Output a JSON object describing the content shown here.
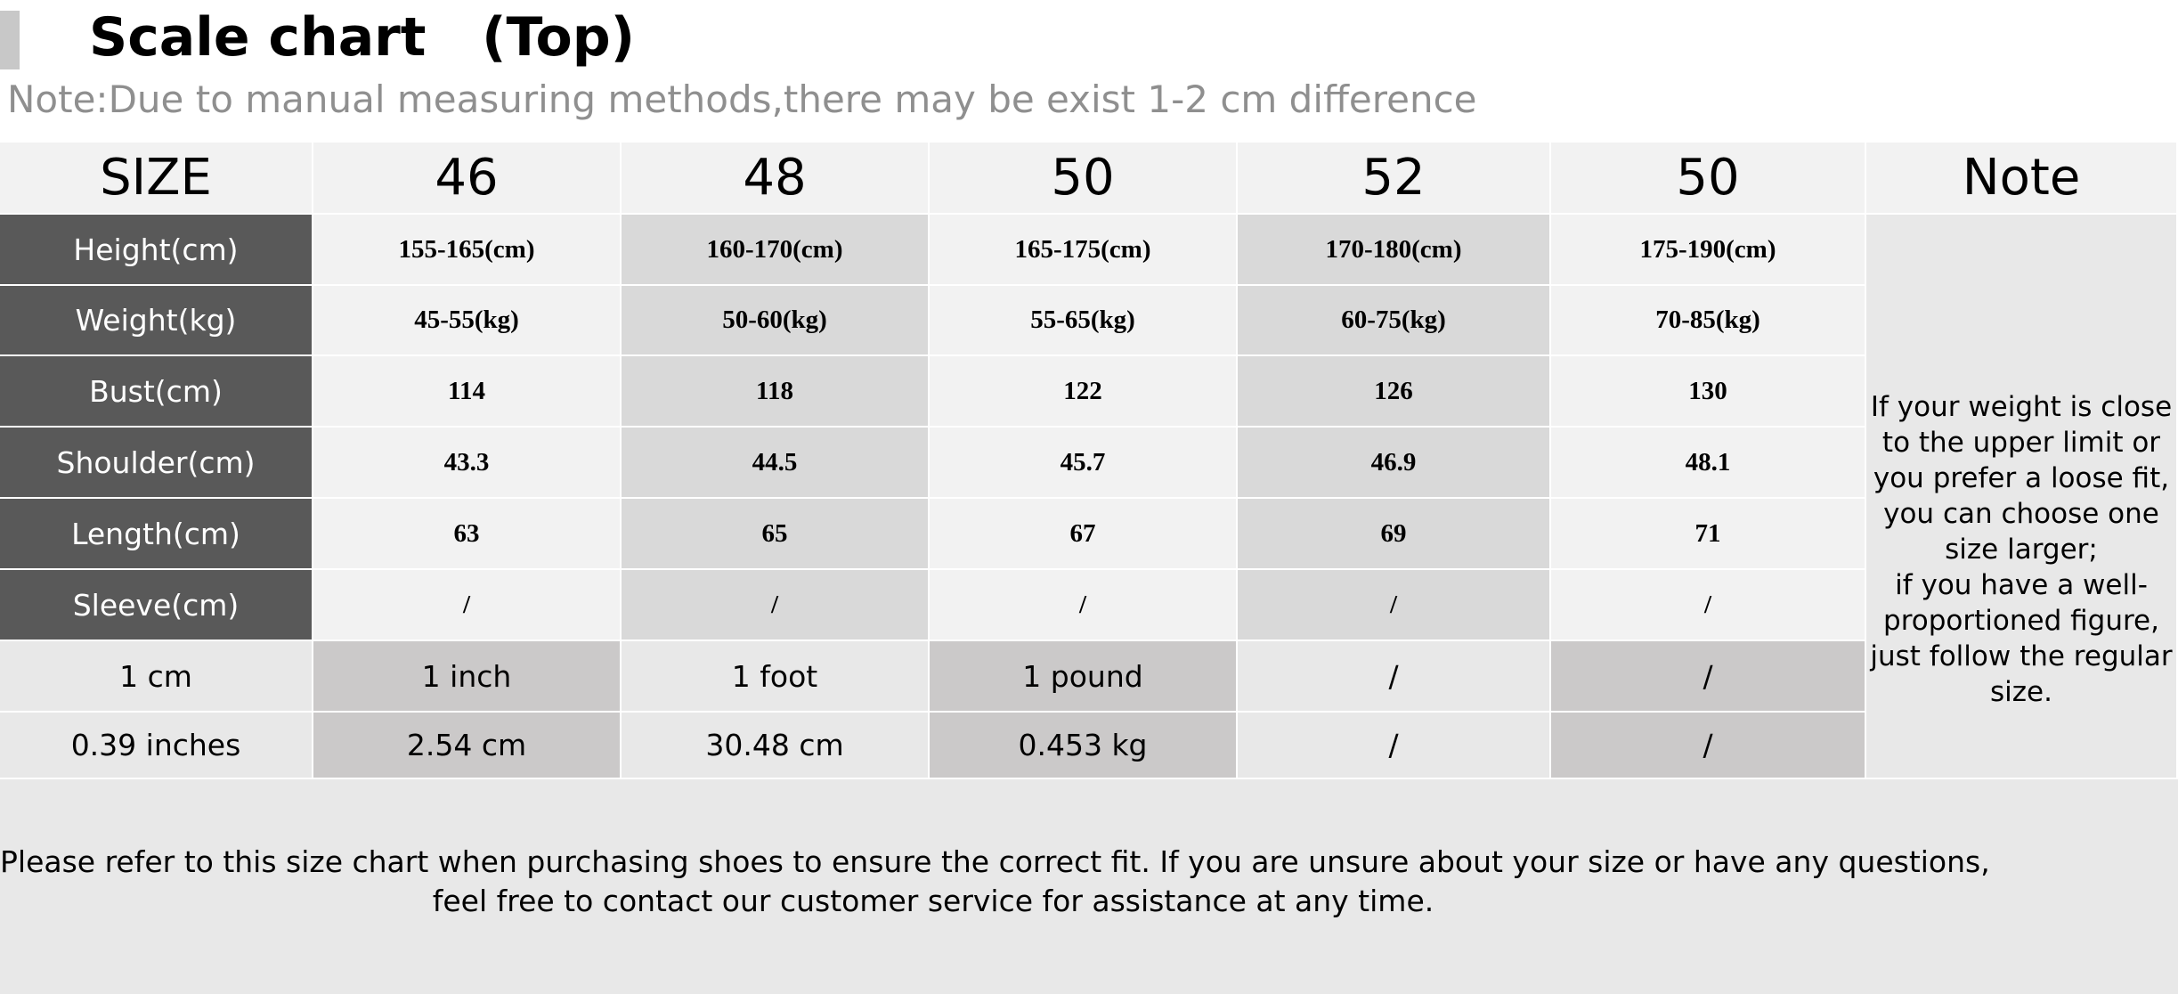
{
  "title": "Scale chart   (Top)",
  "note": "Note:Due to manual measuring methods,there may be exist 1-2 cm difference",
  "table": {
    "header": [
      "SIZE",
      "46",
      "48",
      "50",
      "52",
      "50",
      "Note"
    ],
    "rows": [
      {
        "label": "Height(cm)",
        "values": [
          "155-165(cm)",
          "160-170(cm)",
          "165-175(cm)",
          "170-180(cm)",
          "175-190(cm)"
        ]
      },
      {
        "label": "Weight(kg)",
        "values": [
          "45-55(kg)",
          "50-60(kg)",
          "55-65(kg)",
          "60-75(kg)",
          "70-85(kg)"
        ]
      },
      {
        "label": "Bust(cm)",
        "values": [
          "114",
          "118",
          "122",
          "126",
          "130"
        ]
      },
      {
        "label": "Shoulder(cm)",
        "values": [
          "43.3",
          "44.5",
          "45.7",
          "46.9",
          "48.1"
        ]
      },
      {
        "label": "Length(cm)",
        "values": [
          "63",
          "65",
          "67",
          "69",
          "71"
        ]
      },
      {
        "label": "Sleeve(cm)",
        "values": [
          "/",
          "/",
          "/",
          "/",
          "/"
        ]
      }
    ],
    "conversion": [
      [
        "1 cm",
        "1 inch",
        "1 foot",
        "1 pound",
        "/",
        "/"
      ],
      [
        "0.39 inches",
        "2.54 cm",
        "30.48 cm",
        "0.453 kg",
        "/",
        "/"
      ]
    ],
    "note_text": [
      "If your weight is close",
      "to the upper limit or",
      "you prefer a loose fit,",
      "you can choose one",
      "size larger;",
      "if you have a well-",
      "proportioned figure,",
      "just follow the regular",
      "size."
    ]
  },
  "footer": [
    "Please refer to this size chart when purchasing shoes to ensure the correct fit. If you are unsure about your size or have any questions,",
    "feel free to contact our customer service for assistance at any time."
  ]
}
